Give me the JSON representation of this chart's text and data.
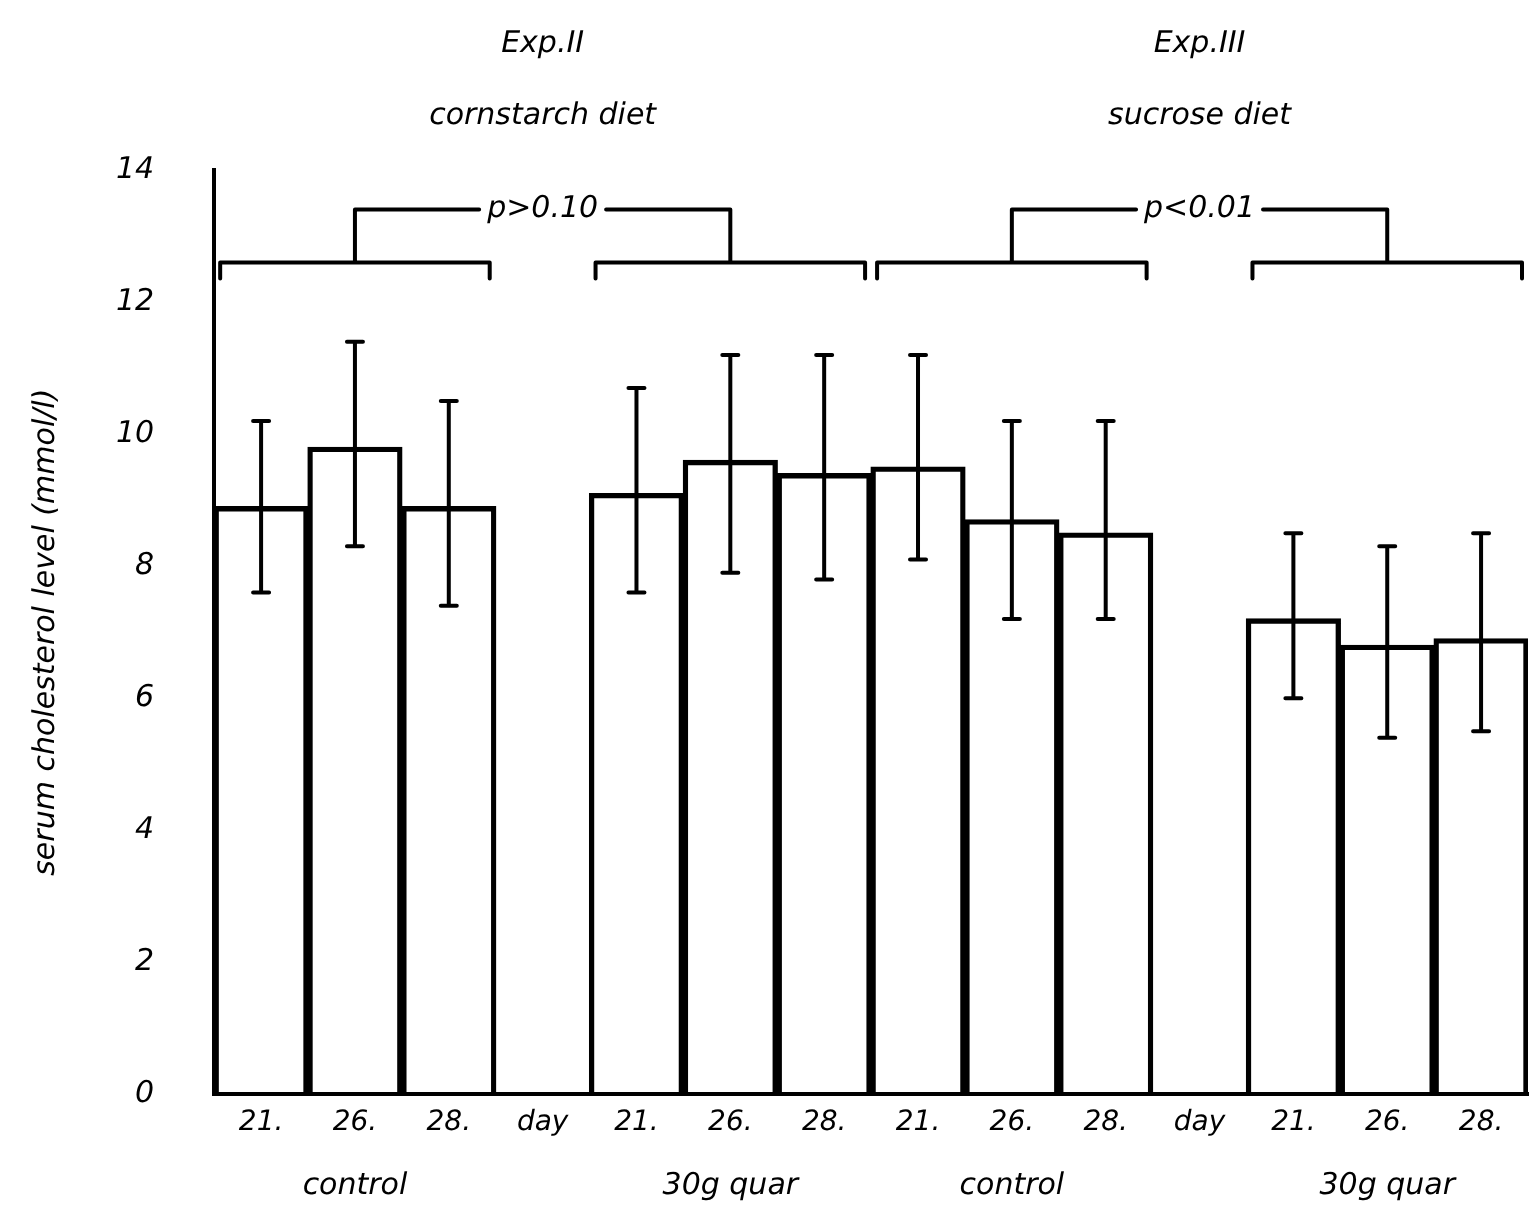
{
  "chart_data": {
    "type": "bar",
    "ylabel": "serum cholesterol level (mmol/l)",
    "categories": [
      "21.",
      "26.",
      "28.",
      "day",
      "21.",
      "26.",
      "28.",
      "21.",
      "26.",
      "28.",
      "day",
      "21.",
      "26.",
      "28."
    ],
    "values": [
      8.9,
      9.8,
      8.9,
      null,
      9.1,
      9.6,
      9.4,
      9.5,
      8.7,
      8.5,
      null,
      7.2,
      6.8,
      6.9
    ],
    "errors": [
      [
        7.6,
        10.2
      ],
      [
        8.3,
        11.4
      ],
      [
        7.4,
        10.5
      ],
      null,
      [
        7.6,
        10.7
      ],
      [
        7.9,
        11.2
      ],
      [
        7.8,
        11.2
      ],
      [
        8.1,
        11.2
      ],
      [
        7.2,
        10.2
      ],
      [
        7.2,
        10.2
      ],
      null,
      [
        6.0,
        8.5
      ],
      [
        5.4,
        8.3
      ],
      [
        5.5,
        8.5
      ]
    ],
    "color": "#000000",
    "ylim": [
      0,
      14
    ],
    "yticks": [
      0,
      2,
      4,
      6,
      8,
      10,
      12,
      14
    ],
    "grid": false,
    "legend": false,
    "annotations": [
      "Exp.II",
      "cornstarch diet",
      "Exp.III",
      "sucrose diet",
      "p>0.10",
      "p<0.01",
      "control",
      "30g quar",
      "control",
      "30g quar"
    ]
  }
}
